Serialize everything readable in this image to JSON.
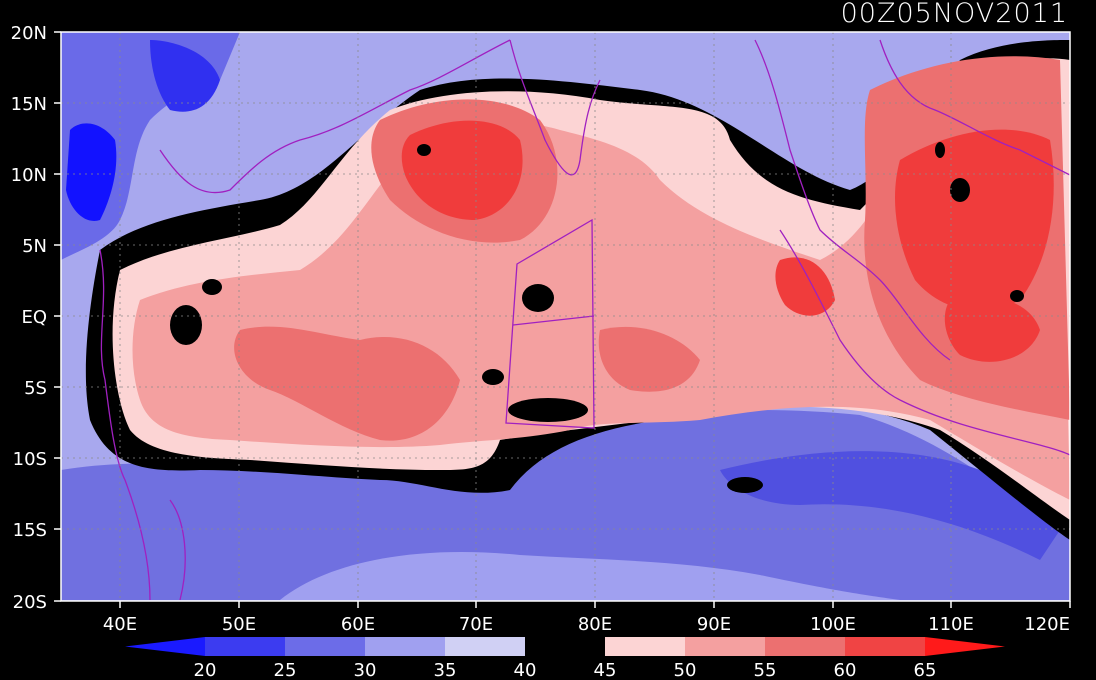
{
  "title": "00Z05NOV2011",
  "x_labels": [
    "40E",
    "50E",
    "60E",
    "70E",
    "80E",
    "90E",
    "100E",
    "110E",
    "120E"
  ],
  "y_labels": [
    "20N",
    "15N",
    "10N",
    "5N",
    "EQ",
    "5S",
    "10S",
    "15S",
    "20S"
  ],
  "colorbar": {
    "labels": [
      "20",
      "25",
      "30",
      "35",
      "40",
      "45",
      "50",
      "55",
      "60",
      "65"
    ],
    "colors": [
      "#1818ff",
      "#3c3cf0",
      "#6c6ce8",
      "#a0a0f0",
      "#d0d0f4",
      "#000000",
      "#fcd4d4",
      "#f4a0a0",
      "#ec7070",
      "#f04444",
      "#ff1414"
    ],
    "arrow_left": "#1a1aff",
    "arrow_right": "#ff1a1a"
  },
  "palette": {
    "background": "#000000",
    "coast": "#a020c0",
    "grid": "#8a8a8a"
  }
}
